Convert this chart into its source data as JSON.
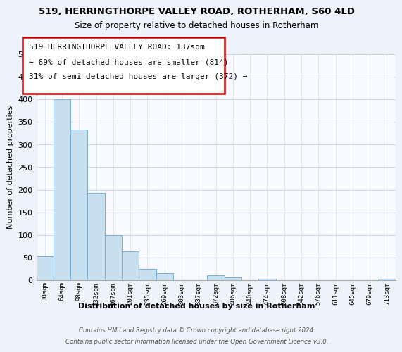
{
  "title1": "519, HERRINGTHORPE VALLEY ROAD, ROTHERHAM, S60 4LD",
  "title2": "Size of property relative to detached houses in Rotherham",
  "xlabel": "Distribution of detached houses by size in Rotherham",
  "ylabel": "Number of detached properties",
  "bar_color": "#c8dff0",
  "bar_edge_color": "#7bafd4",
  "categories": [
    "30sqm",
    "64sqm",
    "98sqm",
    "132sqm",
    "167sqm",
    "201sqm",
    "235sqm",
    "269sqm",
    "303sqm",
    "337sqm",
    "372sqm",
    "406sqm",
    "440sqm",
    "474sqm",
    "508sqm",
    "542sqm",
    "576sqm",
    "611sqm",
    "645sqm",
    "679sqm",
    "713sqm"
  ],
  "values": [
    52,
    400,
    333,
    193,
    99,
    63,
    25,
    15,
    0,
    0,
    10,
    5,
    0,
    2,
    0,
    0,
    0,
    0,
    0,
    0,
    2
  ],
  "ylim": [
    0,
    500
  ],
  "yticks": [
    0,
    50,
    100,
    150,
    200,
    250,
    300,
    350,
    400,
    450,
    500
  ],
  "annotation_title": "519 HERRINGTHORPE VALLEY ROAD: 137sqm",
  "annotation_line1": "← 69% of detached houses are smaller (814)",
  "annotation_line2": "31% of semi-detached houses are larger (372) →",
  "footer1": "Contains HM Land Registry data © Crown copyright and database right 2024.",
  "footer2": "Contains public sector information licensed under the Open Government Licence v3.0.",
  "background_color": "#eef2fa",
  "plot_background": "#f8faff",
  "grid_color": "#d0d8e8"
}
